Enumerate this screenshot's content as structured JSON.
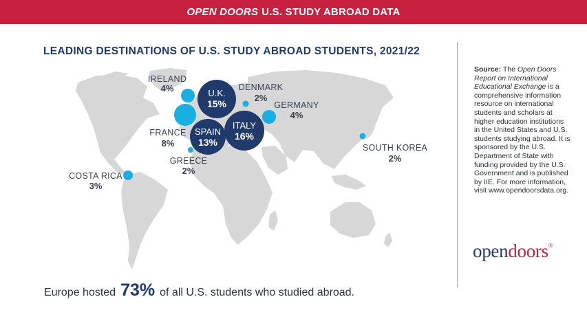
{
  "banner": {
    "title_italic": "OPEN DOORS",
    "title_rest": "U.S. STUDY ABROAD DATA"
  },
  "colors": {
    "banner": "#c8203f",
    "navy_bubble": "#1f3a6b",
    "light_bubble": "#19afe0",
    "land": "#d7d7d7"
  },
  "chart": {
    "title": "LEADING DESTINATIONS OF U.S. STUDY ABROAD STUDENTS, 2021/22",
    "destinations": [
      {
        "name": "IRELAND",
        "pct": "4%",
        "value": 4
      },
      {
        "name": "U.K.",
        "pct": "15%",
        "value": 15
      },
      {
        "name": "DENMARK",
        "pct": "2%",
        "value": 2
      },
      {
        "name": "GERMANY",
        "pct": "4%",
        "value": 4
      },
      {
        "name": "FRANCE",
        "pct": "8%",
        "value": 8
      },
      {
        "name": "SPAIN",
        "pct": "13%",
        "value": 13
      },
      {
        "name": "ITALY",
        "pct": "16%",
        "value": 16
      },
      {
        "name": "GREECE",
        "pct": "2%",
        "value": 2
      },
      {
        "name": "COSTA RICA",
        "pct": "3%",
        "value": 3
      },
      {
        "name": "SOUTH KOREA",
        "pct": "2%",
        "value": 2
      }
    ]
  },
  "footer": {
    "prefix": "Europe hosted",
    "highlight": "73%",
    "suffix": "of all U.S. students who studied abroad."
  },
  "source": {
    "label": "Source:",
    "pre": "The",
    "italic": "Open Doors Report on International Educational Exchange",
    "body": "is a comprehensive information resource on international students and scholars at higher education institutions in the United States and U.S. students studying abroad. It is sponsored by the U.S. Department of State with funding provided by the U.S. Government and is published by IIE. For more information, visit www.opendoorsdata.org."
  },
  "logo": {
    "open": "open",
    "doors": "doors",
    "reg": "®"
  }
}
